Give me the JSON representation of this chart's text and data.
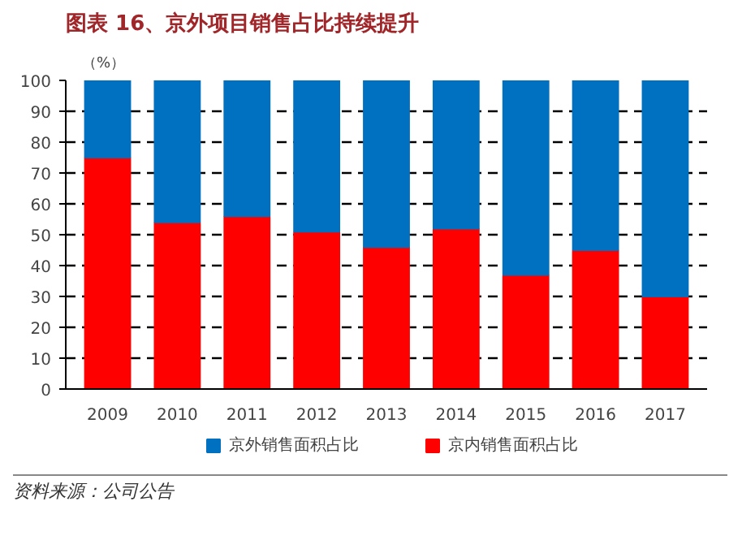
{
  "chart_data": {
    "type": "bar",
    "stacked": true,
    "title": "图表 16、京外项目销售占比持续提升",
    "ylabel": "（%）",
    "categories": [
      "2009",
      "2010",
      "2011",
      "2012",
      "2013",
      "2014",
      "2015",
      "2016",
      "2017"
    ],
    "series": [
      {
        "name": "京内销售面积占比",
        "color": "#ff0000",
        "values": [
          75,
          54,
          56,
          51,
          46,
          52,
          37,
          45,
          30
        ]
      },
      {
        "name": "京外销售面积占比",
        "color": "#0070c0",
        "values": [
          25,
          46,
          44,
          49,
          54,
          48,
          63,
          55,
          70
        ]
      }
    ],
    "ylim": [
      0,
      100
    ],
    "yticks": [
      0,
      10,
      20,
      30,
      40,
      50,
      60,
      70,
      80,
      90,
      100
    ],
    "grid": "y",
    "legend": "bottom",
    "annotations": [
      "资料来源：公司公告"
    ]
  }
}
